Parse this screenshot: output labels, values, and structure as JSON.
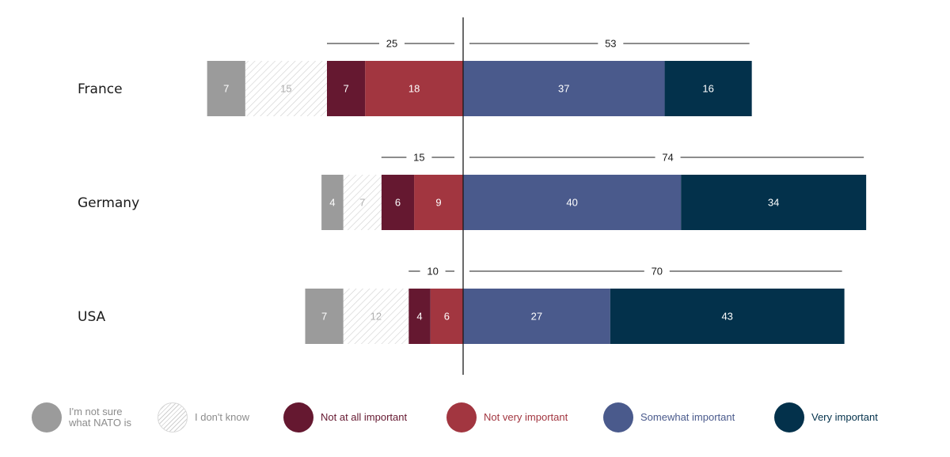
{
  "chart_data": {
    "type": "bar",
    "orientation": "horizontal-diverging",
    "categories": [
      "France",
      "Germany",
      "USA"
    ],
    "series": [
      {
        "name": "I'm not sure what NATO is",
        "values": [
          7,
          4,
          7
        ],
        "side": "negative",
        "color": "#9b9b9b",
        "label_color": "#ffffff"
      },
      {
        "name": "I don't know",
        "values": [
          15,
          7,
          12
        ],
        "side": "negative",
        "color": "hatch",
        "label_color": "#b0b0b0"
      },
      {
        "name": "Not at all important",
        "values": [
          7,
          6,
          4
        ],
        "side": "negative",
        "color": "#651830",
        "label_color": "#ffffff"
      },
      {
        "name": "Not very important",
        "values": [
          18,
          9,
          6
        ],
        "side": "negative",
        "color": "#a23640",
        "label_color": "#ffffff"
      },
      {
        "name": "Somewhat important",
        "values": [
          37,
          40,
          27
        ],
        "side": "positive",
        "color": "#4a5a8c",
        "label_color": "#ffffff"
      },
      {
        "name": "Very important",
        "values": [
          16,
          34,
          43
        ],
        "side": "positive",
        "color": "#03314b",
        "label_color": "#ffffff"
      }
    ],
    "totals": {
      "negative": [
        25,
        15,
        10
      ],
      "positive": [
        53,
        74,
        70
      ]
    },
    "legend_position": "bottom",
    "grid": false
  },
  "legend": {
    "items": [
      {
        "line1": "I'm not sure",
        "line2": "what NATO is",
        "color": "#9b9b9b",
        "text_color": "#8c8c8c",
        "hatch": false
      },
      {
        "line1": "I don't know",
        "line2": "",
        "color": "#ffffff",
        "text_color": "#8c8c8c",
        "hatch": true
      },
      {
        "line1": "Not at all important",
        "line2": "",
        "color": "#651830",
        "text_color": "#651830",
        "hatch": false
      },
      {
        "line1": "Not very important",
        "line2": "",
        "color": "#a23640",
        "text_color": "#a23640",
        "hatch": false
      },
      {
        "line1": "Somewhat important",
        "line2": "",
        "color": "#4a5a8c",
        "text_color": "#4a5a8c",
        "hatch": false
      },
      {
        "line1": "Very important",
        "line2": "",
        "color": "#03314b",
        "text_color": "#03314b",
        "hatch": false
      }
    ]
  }
}
